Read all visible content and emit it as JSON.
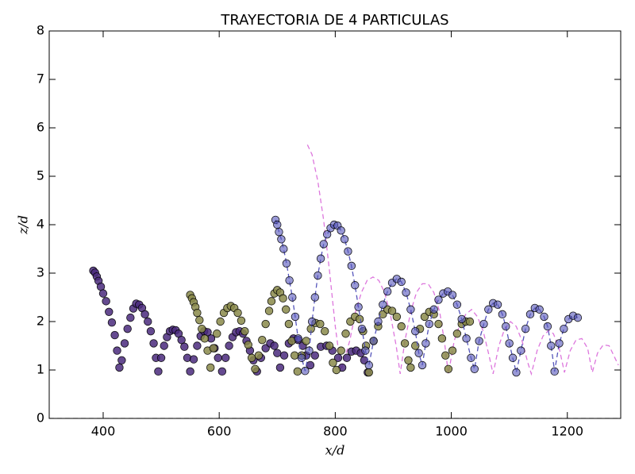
{
  "chart_data": {
    "type": "scatter",
    "title": "TRAYECTORIA DE 4 PARTICULAS",
    "xlabel": "x/d",
    "ylabel": "z/d",
    "xlim": [
      307,
      1292
    ],
    "ylim": [
      0,
      8
    ],
    "xticks": [
      400,
      600,
      800,
      1000,
      1200
    ],
    "yticks": [
      0,
      1,
      2,
      3,
      4,
      5,
      6,
      7,
      8
    ],
    "series": [
      {
        "color": "#808080",
        "linestyle": "dashed",
        "marker": "none",
        "alpha": 1,
        "x": [
          307,
          1292
        ],
        "values": [
          0,
          0
        ]
      },
      {
        "color": "#dd77dd",
        "linestyle": "dashed",
        "marker": "none",
        "alpha": 1,
        "x": [
          752,
          760,
          770,
          780,
          790,
          800,
          810,
          825,
          835,
          845,
          855,
          865,
          875,
          885,
          895,
          905,
          912,
          920,
          930,
          940,
          950,
          960,
          970,
          980,
          988,
          995,
          1005,
          1015,
          1025,
          1035,
          1045,
          1055,
          1065,
          1072,
          1082,
          1092,
          1102,
          1112,
          1122,
          1132,
          1138,
          1148,
          1158,
          1168,
          1176,
          1186,
          1195,
          1205,
          1215,
          1225,
          1235,
          1243,
          1252,
          1262,
          1272,
          1282,
          1288
        ],
        "values": [
          5.65,
          5.45,
          4.9,
          4.1,
          3.05,
          1.9,
          1.0,
          1.6,
          2.2,
          2.6,
          2.85,
          2.92,
          2.85,
          2.6,
          2.15,
          1.5,
          0.92,
          1.6,
          2.2,
          2.6,
          2.78,
          2.78,
          2.6,
          2.2,
          1.6,
          0.92,
          1.6,
          1.95,
          2.15,
          2.25,
          2.1,
          1.8,
          1.3,
          0.92,
          1.5,
          1.85,
          2.0,
          1.9,
          1.6,
          1.15,
          0.92,
          1.4,
          1.7,
          1.82,
          1.75,
          1.45,
          0.95,
          1.4,
          1.62,
          1.65,
          1.45,
          0.95,
          1.35,
          1.52,
          1.5,
          1.25,
          1.1
        ]
      },
      {
        "color": "#4a2a7c",
        "linestyle": "none",
        "marker": "o",
        "alpha": 0.85,
        "x": [
          383,
          386,
          389,
          392,
          396,
          400,
          405,
          410,
          415,
          420,
          424,
          428,
          432,
          437,
          442,
          447,
          452,
          457,
          462,
          467,
          472,
          477,
          482,
          487,
          491,
          495,
          500,
          505,
          510,
          515,
          520,
          525,
          530,
          535,
          540,
          545,
          550,
          556,
          562,
          568,
          574,
          580,
          586,
          592,
          598,
          605,
          611,
          617,
          623,
          629,
          635,
          641,
          647,
          653,
          659,
          665,
          672,
          680,
          688,
          695,
          700,
          705,
          712,
          720,
          728,
          736,
          744,
          750,
          757,
          765,
          775,
          785,
          795,
          805,
          812,
          820,
          828,
          836,
          844,
          850,
          856
        ],
        "values": [
          3.05,
          3.01,
          2.93,
          2.84,
          2.72,
          2.58,
          2.42,
          2.2,
          1.98,
          1.72,
          1.4,
          1.05,
          1.2,
          1.55,
          1.85,
          2.08,
          2.27,
          2.37,
          2.35,
          2.28,
          2.15,
          2.0,
          1.8,
          1.55,
          1.25,
          0.97,
          1.25,
          1.5,
          1.68,
          1.8,
          1.83,
          1.82,
          1.75,
          1.62,
          1.48,
          1.25,
          0.97,
          1.22,
          1.5,
          1.7,
          1.8,
          1.78,
          1.65,
          1.45,
          1.25,
          0.97,
          1.25,
          1.5,
          1.68,
          1.78,
          1.8,
          1.75,
          1.6,
          1.4,
          1.2,
          0.97,
          1.25,
          1.45,
          1.55,
          1.5,
          1.35,
          1.05,
          1.3,
          1.55,
          1.65,
          1.62,
          1.5,
          1.3,
          1.1,
          1.3,
          1.48,
          1.5,
          1.4,
          1.25,
          1.05,
          1.25,
          1.38,
          1.4,
          1.35,
          1.2,
          0.95
        ]
      },
      {
        "color": "#8a8a4a",
        "linestyle": "none",
        "marker": "o",
        "alpha": 0.85,
        "x": [
          550,
          553,
          556,
          559,
          562,
          566,
          570,
          575,
          580,
          585,
          590,
          596,
          602,
          608,
          614,
          620,
          626,
          632,
          638,
          644,
          650,
          656,
          662,
          668,
          674,
          680,
          686,
          690,
          695,
          700,
          705,
          710,
          715,
          720,
          725,
          730,
          735,
          742,
          750,
          758,
          766,
          774,
          782,
          790,
          796,
          802,
          810,
          818,
          826,
          834,
          842,
          848,
          853,
          858,
          866,
          874,
          882,
          890,
          898,
          906,
          914,
          920,
          926,
          930,
          938,
          946,
          954,
          962,
          970,
          978,
          984,
          990,
          995,
          1002,
          1010,
          1018,
          1025,
          1032
        ],
        "values": [
          2.55,
          2.48,
          2.4,
          2.3,
          2.18,
          2.03,
          1.85,
          1.65,
          1.4,
          1.05,
          1.45,
          1.75,
          2.0,
          2.18,
          2.28,
          2.32,
          2.28,
          2.18,
          2.02,
          1.8,
          1.52,
          1.25,
          1.02,
          1.3,
          1.62,
          1.95,
          2.22,
          2.42,
          2.58,
          2.65,
          2.6,
          2.48,
          2.25,
          1.95,
          1.6,
          1.3,
          0.97,
          1.3,
          1.6,
          1.85,
          1.97,
          1.95,
          1.8,
          1.5,
          1.15,
          1.0,
          1.4,
          1.75,
          2.0,
          2.1,
          2.05,
          1.8,
          1.5,
          0.95,
          1.6,
          1.9,
          2.15,
          2.25,
          2.22,
          2.1,
          1.9,
          1.55,
          1.2,
          1.05,
          1.5,
          1.85,
          2.1,
          2.2,
          2.15,
          1.95,
          1.65,
          1.3,
          1.02,
          1.4,
          1.75,
          1.95,
          2.0,
          2.0
        ]
      },
      {
        "color": "#5555bb",
        "linestyle": "dashed",
        "marker": "o",
        "alpha": 0.6,
        "x": [
          697,
          700,
          703,
          707,
          711,
          716,
          721,
          726,
          731,
          736,
          742,
          748,
          755,
          760,
          765,
          770,
          775,
          780,
          786,
          792,
          798,
          804,
          810,
          816,
          822,
          828,
          834,
          840,
          846,
          852,
          858,
          866,
          874,
          882,
          890,
          898,
          906,
          914,
          922,
          930,
          938,
          944,
          950,
          956,
          962,
          970,
          978,
          986,
          994,
          1002,
          1010,
          1018,
          1026,
          1034,
          1040,
          1048,
          1056,
          1064,
          1072,
          1080,
          1088,
          1094,
          1100,
          1106,
          1112,
          1120,
          1128,
          1136,
          1144,
          1152,
          1160,
          1166,
          1172,
          1178,
          1186,
          1194,
          1202,
          1210,
          1218
        ],
        "values": [
          4.1,
          4.0,
          3.85,
          3.7,
          3.5,
          3.2,
          2.85,
          2.5,
          2.1,
          1.65,
          1.25,
          0.98,
          1.4,
          2.0,
          2.5,
          2.95,
          3.3,
          3.6,
          3.8,
          3.93,
          4.0,
          3.98,
          3.88,
          3.7,
          3.45,
          3.15,
          2.75,
          2.3,
          1.85,
          1.4,
          1.1,
          1.6,
          2.0,
          2.35,
          2.62,
          2.8,
          2.88,
          2.82,
          2.6,
          2.25,
          1.8,
          1.35,
          1.1,
          1.55,
          1.95,
          2.25,
          2.45,
          2.58,
          2.62,
          2.55,
          2.35,
          2.05,
          1.65,
          1.25,
          1.02,
          1.6,
          1.95,
          2.25,
          2.38,
          2.35,
          2.15,
          1.9,
          1.55,
          1.25,
          0.95,
          1.4,
          1.85,
          2.15,
          2.28,
          2.25,
          2.1,
          1.9,
          1.5,
          0.97,
          1.55,
          1.85,
          2.05,
          2.12,
          2.08
        ]
      }
    ]
  }
}
